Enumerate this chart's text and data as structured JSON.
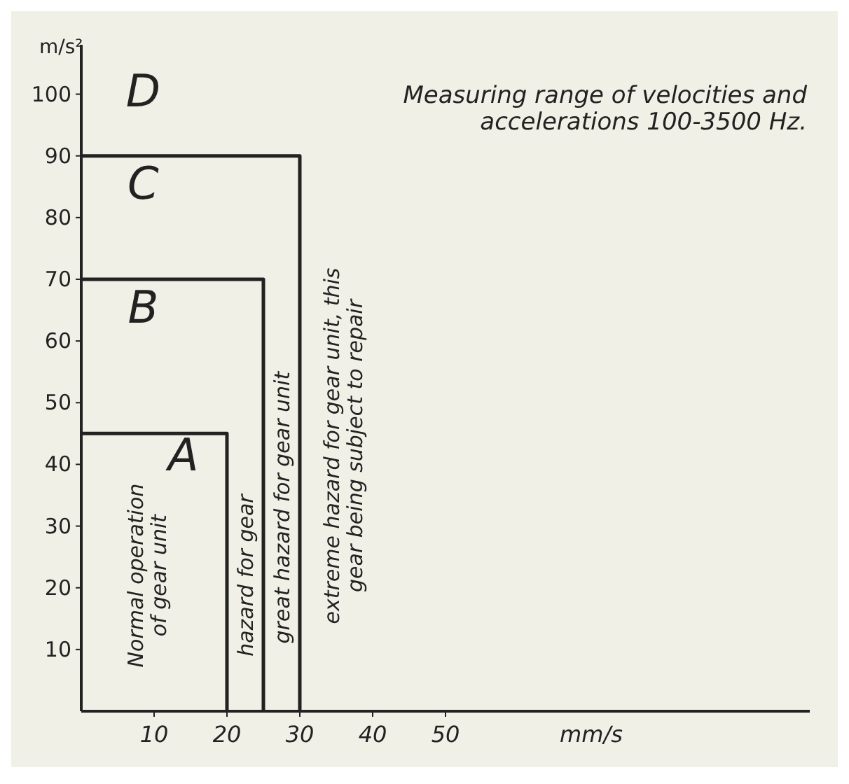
{
  "chart_data": {
    "type": "line",
    "xlabel": "mm/s",
    "ylabel": "m/s²",
    "xlim": [
      0,
      100
    ],
    "ylim": [
      0,
      108
    ],
    "xticks": [
      10,
      20,
      30,
      40,
      50
    ],
    "yticks": [
      10,
      20,
      30,
      40,
      50,
      60,
      70,
      80,
      90,
      100
    ],
    "line_style": "solid",
    "series": [
      {
        "color": "#222222",
        "x": [
          0,
          20,
          20
        ],
        "values": [
          45,
          45,
          0
        ]
      },
      {
        "color": "#222222",
        "x": [
          0,
          25,
          25
        ],
        "values": [
          70,
          70,
          0
        ]
      },
      {
        "color": "#222222",
        "x": [
          0,
          30,
          30
        ],
        "values": [
          90,
          90,
          0
        ]
      }
    ],
    "annotations": [
      "A",
      "B",
      "C",
      "D",
      "Normal operation\nof gear unit",
      "hazard for gear",
      "great hazard for gear unit",
      "extreme hazard for gear unit, this\ngear being subject to repair",
      "Measuring range of velocities and\naccelerations 100-3500 Hz."
    ]
  }
}
